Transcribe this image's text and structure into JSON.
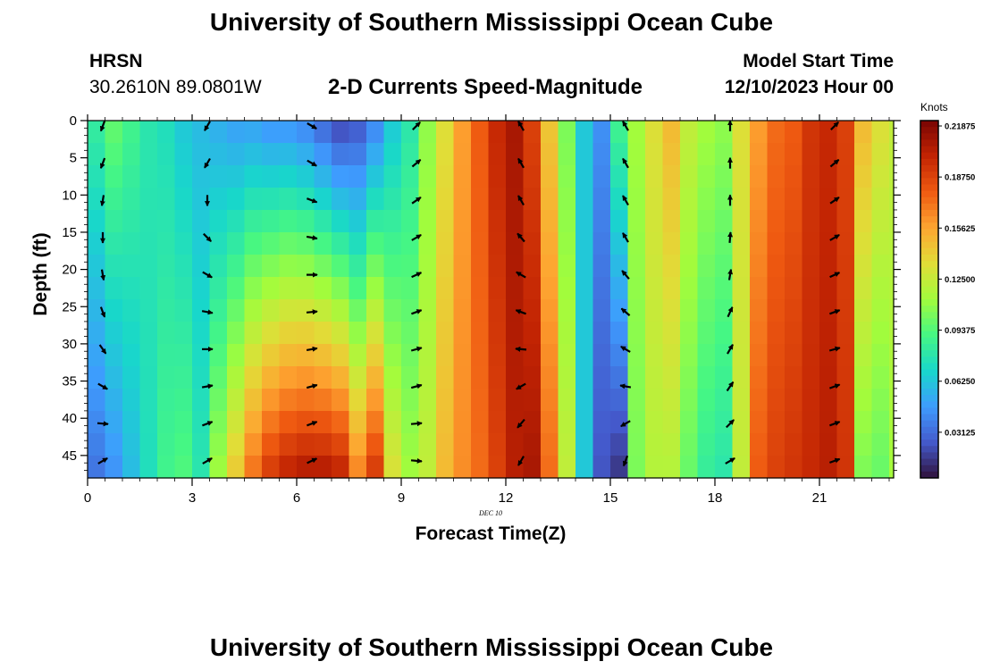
{
  "header": {
    "title": "University of Southern Mississippi Ocean Cube",
    "station": "HRSN",
    "coordinates": "30.2610N  89.0801W",
    "subtitle": "2-D Currents Speed-Magnitude",
    "model_start_label": "Model Start Time",
    "model_start_value": "12/10/2023 Hour 00"
  },
  "footer": {
    "title": "University of Southern Mississippi Ocean Cube"
  },
  "chart_data": {
    "type": "heatmap",
    "title": "2-D Currents Speed-Magnitude",
    "xlabel": "Forecast Time(Z)",
    "ylabel": "Depth (ft)",
    "date_label": "DEC 10",
    "xlim": [
      0,
      23.3
    ],
    "ylim": [
      0,
      48
    ],
    "x_ticks": [
      0,
      3,
      6,
      9,
      12,
      15,
      18,
      21
    ],
    "x_tick_labels": [
      "0",
      "3",
      "6",
      "9",
      "12",
      "15",
      "18",
      "21"
    ],
    "y_ticks": [
      0,
      5,
      10,
      15,
      20,
      25,
      30,
      35,
      40,
      45
    ],
    "y_tick_labels": [
      "0",
      "5",
      "10",
      "15",
      "20",
      "25",
      "30",
      "35",
      "40",
      "45"
    ],
    "colorbar": {
      "label": "Knots",
      "min": 0,
      "max": 0.21875,
      "tick_values": [
        0.21875,
        0.1875,
        0.15625,
        0.125,
        0.09375,
        0.0625,
        0.03125
      ],
      "tick_labels": [
        "0.21875",
        "0.18750",
        "0.15625",
        "0.12500",
        "0.09375",
        "0.06250",
        "0.03125"
      ]
    },
    "columns": [
      {
        "hour": 0,
        "top": 0.08,
        "bottom": 0.03
      },
      {
        "hour": 0.5,
        "top": 0.095,
        "bottom": 0.04
      },
      {
        "hour": 1,
        "top": 0.085,
        "bottom": 0.055
      },
      {
        "hour": 1.5,
        "top": 0.075,
        "bottom": 0.07
      },
      {
        "hour": 2,
        "top": 0.07,
        "bottom": 0.085
      },
      {
        "hour": 2.5,
        "top": 0.06,
        "bottom": 0.09
      },
      {
        "hour": 3,
        "top": 0.055,
        "bottom": 0.075
      },
      {
        "hour": 3.5,
        "top": 0.05,
        "bottom": 0.11
      },
      {
        "hour": 4,
        "top": 0.045,
        "bottom": 0.14
      },
      {
        "hour": 4.5,
        "top": 0.045,
        "bottom": 0.17
      },
      {
        "hour": 5,
        "top": 0.04,
        "bottom": 0.19
      },
      {
        "hour": 5.5,
        "top": 0.04,
        "bottom": 0.2
      },
      {
        "hour": 6,
        "top": 0.035,
        "bottom": 0.205
      },
      {
        "hour": 6.5,
        "top": 0.025,
        "bottom": 0.205
      },
      {
        "hour": 7,
        "top": 0.015,
        "bottom": 0.2
      },
      {
        "hour": 7.5,
        "top": 0.02,
        "bottom": 0.165
      },
      {
        "hour": 8,
        "top": 0.035,
        "bottom": 0.19
      },
      {
        "hour": 8.5,
        "top": 0.06,
        "bottom": 0.13
      },
      {
        "hour": 9,
        "top": 0.075,
        "bottom": 0.11
      },
      {
        "hour": 9.5,
        "top": 0.105,
        "bottom": 0.12
      },
      {
        "hour": 10,
        "top": 0.13,
        "bottom": 0.145
      },
      {
        "hour": 10.5,
        "top": 0.155,
        "bottom": 0.16
      },
      {
        "hour": 11,
        "top": 0.175,
        "bottom": 0.17
      },
      {
        "hour": 11.5,
        "top": 0.195,
        "bottom": 0.185
      },
      {
        "hour": 12,
        "top": 0.205,
        "bottom": 0.2
      },
      {
        "hour": 12.5,
        "top": 0.185,
        "bottom": 0.205
      },
      {
        "hour": 13,
        "top": 0.14,
        "bottom": 0.17
      },
      {
        "hour": 13.5,
        "top": 0.1,
        "bottom": 0.12
      },
      {
        "hour": 14,
        "top": 0.06,
        "bottom": 0.06
      },
      {
        "hour": 14.5,
        "top": 0.04,
        "bottom": 0.02
      },
      {
        "hour": 15,
        "top": 0.085,
        "bottom": 0.01
      },
      {
        "hour": 15.5,
        "top": 0.11,
        "bottom": 0.1
      },
      {
        "hour": 16,
        "top": 0.13,
        "bottom": 0.115
      },
      {
        "hour": 16.5,
        "top": 0.145,
        "bottom": 0.115
      },
      {
        "hour": 17,
        "top": 0.12,
        "bottom": 0.095
      },
      {
        "hour": 17.5,
        "top": 0.11,
        "bottom": 0.08
      },
      {
        "hour": 18,
        "top": 0.105,
        "bottom": 0.075
      },
      {
        "hour": 18.5,
        "top": 0.13,
        "bottom": 0.12
      },
      {
        "hour": 19,
        "top": 0.155,
        "bottom": 0.175
      },
      {
        "hour": 19.5,
        "top": 0.17,
        "bottom": 0.185
      },
      {
        "hour": 20,
        "top": 0.175,
        "bottom": 0.19
      },
      {
        "hour": 20.5,
        "top": 0.19,
        "bottom": 0.195
      },
      {
        "hour": 21,
        "top": 0.195,
        "bottom": 0.2
      },
      {
        "hour": 21.5,
        "top": 0.185,
        "bottom": 0.19
      },
      {
        "hour": 22,
        "top": 0.145,
        "bottom": 0.1
      },
      {
        "hour": 22.5,
        "top": 0.13,
        "bottom": 0.095
      },
      {
        "hour": 23,
        "top": 0.12,
        "bottom": 0.11
      }
    ],
    "vector_depths": [
      0,
      5,
      10,
      15,
      20,
      25,
      30,
      35,
      40,
      45
    ],
    "vectors": [
      {
        "hour": 0,
        "directions_deg": [
          200,
          200,
          190,
          180,
          170,
          160,
          145,
          120,
          95,
          60
        ]
      },
      {
        "hour": 3,
        "directions_deg": [
          210,
          210,
          180,
          135,
          120,
          100,
          90,
          80,
          70,
          60
        ]
      },
      {
        "hour": 6,
        "directions_deg": [
          120,
          120,
          110,
          100,
          90,
          85,
          80,
          75,
          70,
          65
        ]
      },
      {
        "hour": 9,
        "directions_deg": [
          45,
          50,
          55,
          60,
          65,
          70,
          75,
          75,
          85,
          95
        ]
      },
      {
        "hour": 12,
        "directions_deg": [
          330,
          330,
          330,
          320,
          300,
          290,
          275,
          240,
          220,
          210
        ]
      },
      {
        "hour": 15,
        "directions_deg": [
          330,
          330,
          330,
          330,
          320,
          310,
          300,
          280,
          240,
          200
        ]
      },
      {
        "hour": 18,
        "directions_deg": [
          0,
          0,
          0,
          5,
          10,
          25,
          30,
          35,
          45,
          60
        ]
      },
      {
        "hour": 21,
        "directions_deg": [
          45,
          50,
          55,
          60,
          65,
          70,
          75,
          70,
          70,
          70
        ]
      }
    ]
  }
}
